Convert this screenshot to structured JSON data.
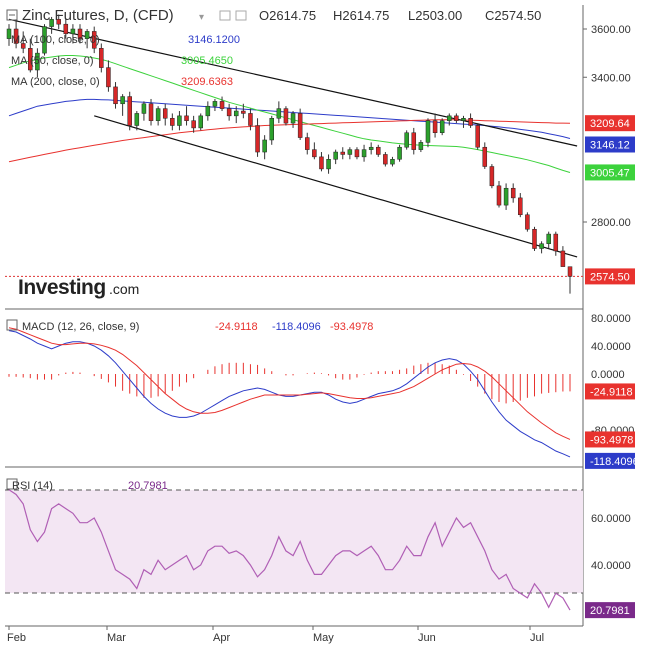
{
  "header": {
    "title": "Zinc Futures, D, (CFD)",
    "open": "O2614.75",
    "high": "H2614.75",
    "low": "L2503.00",
    "close": "C2574.50"
  },
  "indicators": {
    "ma100": {
      "label": "MA (100, close, 0)",
      "value": "3146.1200",
      "color": "#2d3cc9"
    },
    "ma50": {
      "label": "MA (50, close, 0)",
      "value": "3005.4650",
      "color": "#3cd23c"
    },
    "ma200": {
      "label": "MA (200, close, 0)",
      "value": "3209.6363",
      "color": "#e8322e"
    }
  },
  "logo": {
    "text": "Investing",
    "suffix": ".com"
  },
  "price_badges": {
    "ma200": "3209.64",
    "ma100": "3146.12",
    "ma50": "3005.47",
    "last": "2574.50"
  },
  "macd_panel": {
    "label": "MACD (12, 26, close, 9)",
    "v1": "-24.9118",
    "v2": "-118.4096",
    "v3": "-93.4978",
    "badge_hist": "-24.9118",
    "badge_signal": "-93.4978",
    "badge_macd": "-118.4096"
  },
  "rsi_panel": {
    "label": "RSI (14)",
    "value": "20.7981",
    "badge": "20.7981"
  },
  "axes": {
    "price_ticks": [
      "3600.00",
      "3400.00",
      "2800.00"
    ],
    "macd_ticks": [
      "80.0000",
      "40.0000",
      "0.0000",
      "-80.0000"
    ],
    "rsi_ticks": [
      "60.0000",
      "40.0000"
    ],
    "months": [
      "Feb",
      "Mar",
      "Apr",
      "May",
      "Jun",
      "Jul"
    ]
  },
  "chart_data": [
    {
      "type": "candlestick",
      "title": "Zinc Futures, D, (CFD)",
      "ylim": [
        2500,
        3700
      ],
      "x_labels": [
        "Feb",
        "Mar",
        "Apr",
        "May",
        "Jun",
        "Jul"
      ],
      "candles": [
        [
          3560,
          3620,
          3530,
          3600
        ],
        [
          3600,
          3640,
          3520,
          3540
        ],
        [
          3540,
          3590,
          3500,
          3520
        ],
        [
          3520,
          3560,
          3420,
          3430
        ],
        [
          3430,
          3520,
          3400,
          3500
        ],
        [
          3500,
          3620,
          3490,
          3610
        ],
        [
          3610,
          3650,
          3580,
          3640
        ],
        [
          3640,
          3660,
          3600,
          3620
        ],
        [
          3620,
          3640,
          3560,
          3580
        ],
        [
          3580,
          3620,
          3540,
          3600
        ],
        [
          3600,
          3620,
          3540,
          3560
        ],
        [
          3560,
          3600,
          3520,
          3590
        ],
        [
          3590,
          3610,
          3500,
          3520
        ],
        [
          3520,
          3540,
          3420,
          3440
        ],
        [
          3440,
          3470,
          3340,
          3360
        ],
        [
          3360,
          3380,
          3270,
          3290
        ],
        [
          3290,
          3330,
          3240,
          3320
        ],
        [
          3320,
          3340,
          3180,
          3200
        ],
        [
          3200,
          3260,
          3180,
          3250
        ],
        [
          3250,
          3300,
          3220,
          3290
        ],
        [
          3290,
          3310,
          3200,
          3220
        ],
        [
          3220,
          3280,
          3200,
          3270
        ],
        [
          3270,
          3290,
          3200,
          3230
        ],
        [
          3230,
          3250,
          3180,
          3200
        ],
        [
          3200,
          3260,
          3180,
          3240
        ],
        [
          3240,
          3280,
          3200,
          3220
        ],
        [
          3220,
          3240,
          3170,
          3190
        ],
        [
          3190,
          3250,
          3180,
          3240
        ],
        [
          3240,
          3300,
          3220,
          3280
        ],
        [
          3280,
          3310,
          3260,
          3300
        ],
        [
          3300,
          3320,
          3260,
          3270
        ],
        [
          3270,
          3290,
          3220,
          3240
        ],
        [
          3240,
          3280,
          3210,
          3260
        ],
        [
          3260,
          3290,
          3230,
          3250
        ],
        [
          3250,
          3270,
          3180,
          3200
        ],
        [
          3200,
          3230,
          3070,
          3090
        ],
        [
          3090,
          3160,
          3060,
          3140
        ],
        [
          3140,
          3240,
          3120,
          3230
        ],
        [
          3230,
          3300,
          3210,
          3270
        ],
        [
          3270,
          3280,
          3200,
          3210
        ],
        [
          3210,
          3260,
          3190,
          3250
        ],
        [
          3250,
          3270,
          3140,
          3150
        ],
        [
          3150,
          3170,
          3080,
          3100
        ],
        [
          3100,
          3130,
          3060,
          3070
        ],
        [
          3070,
          3090,
          3010,
          3020
        ],
        [
          3020,
          3080,
          3000,
          3060
        ],
        [
          3060,
          3100,
          3040,
          3090
        ],
        [
          3090,
          3110,
          3060,
          3080
        ],
        [
          3080,
          3110,
          3060,
          3100
        ],
        [
          3100,
          3110,
          3060,
          3070
        ],
        [
          3070,
          3120,
          3050,
          3100
        ],
        [
          3100,
          3130,
          3080,
          3110
        ],
        [
          3110,
          3120,
          3070,
          3080
        ],
        [
          3080,
          3090,
          3030,
          3040
        ],
        [
          3040,
          3070,
          3030,
          3060
        ],
        [
          3060,
          3120,
          3050,
          3110
        ],
        [
          3110,
          3180,
          3100,
          3170
        ],
        [
          3170,
          3190,
          3080,
          3100
        ],
        [
          3100,
          3140,
          3090,
          3130
        ],
        [
          3130,
          3230,
          3110,
          3220
        ],
        [
          3220,
          3250,
          3150,
          3170
        ],
        [
          3170,
          3230,
          3160,
          3220
        ],
        [
          3220,
          3250,
          3200,
          3240
        ],
        [
          3240,
          3250,
          3210,
          3220
        ],
        [
          3220,
          3240,
          3190,
          3230
        ],
        [
          3230,
          3250,
          3190,
          3200
        ],
        [
          3200,
          3210,
          3100,
          3110
        ],
        [
          3110,
          3130,
          3020,
          3030
        ],
        [
          3030,
          3040,
          2940,
          2950
        ],
        [
          2950,
          2970,
          2860,
          2870
        ],
        [
          2870,
          2960,
          2850,
          2940
        ],
        [
          2940,
          2960,
          2880,
          2900
        ],
        [
          2900,
          2920,
          2820,
          2830
        ],
        [
          2830,
          2840,
          2760,
          2770
        ],
        [
          2770,
          2780,
          2680,
          2690
        ],
        [
          2690,
          2720,
          2670,
          2710
        ],
        [
          2710,
          2760,
          2690,
          2750
        ],
        [
          2750,
          2760,
          2660,
          2680
        ],
        [
          2680,
          2700,
          2620,
          2615
        ],
        [
          2614.75,
          2614.75,
          2503,
          2574.5
        ]
      ],
      "series": [
        {
          "name": "MA (100, close, 0)",
          "values": [
            3240,
            3250,
            3260,
            3270,
            3280,
            3285,
            3290,
            3295,
            3300,
            3303,
            3306,
            3308,
            3308,
            3307,
            3306,
            3304,
            3302,
            3300,
            3298,
            3296,
            3294,
            3292,
            3290,
            3288,
            3286,
            3284,
            3282,
            3280,
            3278,
            3276,
            3274,
            3272,
            3270,
            3268,
            3266,
            3264,
            3262,
            3260,
            3258,
            3256,
            3254,
            3252,
            3250,
            3248,
            3246,
            3244,
            3242,
            3240,
            3238,
            3236,
            3234,
            3232,
            3230,
            3228,
            3226,
            3224,
            3222,
            3220,
            3218,
            3216,
            3214,
            3212,
            3210,
            3208,
            3206,
            3204,
            3202,
            3200,
            3197,
            3194,
            3191,
            3188,
            3184,
            3180,
            3176,
            3172,
            3166,
            3160,
            3154,
            3146
          ]
        },
        {
          "name": "MA (50, close, 0)",
          "values": [
            3440,
            3450,
            3460,
            3468,
            3474,
            3480,
            3484,
            3488,
            3490,
            3490,
            3488,
            3485,
            3480,
            3474,
            3466,
            3456,
            3446,
            3436,
            3426,
            3416,
            3406,
            3396,
            3386,
            3376,
            3366,
            3356,
            3346,
            3336,
            3326,
            3316,
            3306,
            3296,
            3288,
            3280,
            3272,
            3264,
            3256,
            3248,
            3240,
            3232,
            3224,
            3216,
            3208,
            3200,
            3192,
            3184,
            3176,
            3168,
            3160,
            3152,
            3145,
            3140,
            3136,
            3132,
            3128,
            3125,
            3122,
            3120,
            3118,
            3117,
            3116,
            3115,
            3114,
            3113,
            3110,
            3105,
            3100,
            3094,
            3088,
            3082,
            3076,
            3070,
            3064,
            3058,
            3050,
            3042,
            3034,
            3024,
            3014,
            3005
          ]
        },
        {
          "name": "MA (200, close, 0)",
          "values": [
            3050,
            3056,
            3062,
            3068,
            3074,
            3080,
            3086,
            3092,
            3098,
            3103,
            3108,
            3113,
            3118,
            3123,
            3128,
            3133,
            3138,
            3142,
            3146,
            3150,
            3154,
            3158,
            3162,
            3166,
            3170,
            3173,
            3176,
            3179,
            3182,
            3185,
            3188,
            3190,
            3192,
            3194,
            3196,
            3198,
            3200,
            3201,
            3202,
            3203,
            3204,
            3205,
            3206,
            3207,
            3208,
            3209,
            3210,
            3211,
            3212,
            3213,
            3214,
            3215,
            3216,
            3217,
            3218,
            3219,
            3220,
            3221,
            3222,
            3223,
            3224,
            3224,
            3224,
            3224,
            3223,
            3222,
            3221,
            3220,
            3219,
            3218,
            3217,
            3216,
            3215,
            3214,
            3213,
            3212,
            3211,
            3210,
            3210,
            3209.64
          ]
        }
      ],
      "channel": {
        "upper": [
          [
            0,
            3640
          ],
          [
            80,
            3115
          ]
        ],
        "lower": [
          [
            12,
            3240
          ],
          [
            80,
            2655
          ]
        ]
      }
    },
    {
      "type": "macd",
      "title": "MACD (12, 26, close, 9)",
      "ylim": [
        -140,
        100
      ],
      "macd": [
        62,
        60,
        55,
        50,
        44,
        40,
        36,
        40,
        44,
        46,
        46,
        44,
        40,
        34,
        26,
        16,
        4,
        -8,
        -20,
        -32,
        -42,
        -50,
        -56,
        -60,
        -62,
        -62,
        -60,
        -56,
        -50,
        -44,
        -38,
        -32,
        -28,
        -24,
        -22,
        -20,
        -22,
        -26,
        -30,
        -32,
        -32,
        -30,
        -28,
        -26,
        -26,
        -30,
        -36,
        -40,
        -42,
        -40,
        -36,
        -32,
        -28,
        -26,
        -24,
        -20,
        -14,
        -6,
        2,
        10,
        16,
        20,
        22,
        20,
        14,
        4,
        -8,
        -24,
        -40,
        -54,
        -66,
        -74,
        -82,
        -88,
        -94,
        -98,
        -104,
        -110,
        -114,
        -118.41
      ],
      "signal": [
        66,
        64,
        60,
        56,
        52,
        48,
        44,
        42,
        42,
        43,
        44,
        44,
        43,
        41,
        38,
        34,
        28,
        20,
        12,
        2,
        -8,
        -18,
        -28,
        -36,
        -44,
        -50,
        -54,
        -56,
        -56,
        -55,
        -52,
        -48,
        -44,
        -40,
        -36,
        -33,
        -30,
        -30,
        -30,
        -30,
        -30,
        -30,
        -29,
        -28,
        -27,
        -28,
        -30,
        -32,
        -34,
        -35,
        -35,
        -34,
        -32,
        -30,
        -28,
        -26,
        -22,
        -18,
        -12,
        -6,
        0,
        6,
        10,
        14,
        15,
        14,
        10,
        4,
        -4,
        -14,
        -24,
        -34,
        -44,
        -54,
        -62,
        -70,
        -77,
        -84,
        -89,
        -93.5
      ],
      "histogram": [
        -4,
        -4,
        -5,
        -6,
        -8,
        -8,
        -8,
        -2,
        2,
        3,
        2,
        0,
        -3,
        -7,
        -12,
        -18,
        -24,
        -28,
        -32,
        -34,
        -34,
        -32,
        -28,
        -24,
        -18,
        -12,
        -6,
        0,
        6,
        11,
        14,
        16,
        16,
        16,
        14,
        13,
        8,
        4,
        0,
        -2,
        -2,
        0,
        1,
        2,
        1,
        -2,
        -6,
        -8,
        -8,
        -5,
        -1,
        2,
        4,
        4,
        4,
        6,
        8,
        12,
        14,
        16,
        16,
        14,
        12,
        6,
        -1,
        -10,
        -18,
        -28,
        -36,
        -40,
        -42,
        -40,
        -38,
        -34,
        -32,
        -28,
        -27,
        -26,
        -25,
        -24.91
      ]
    },
    {
      "type": "line",
      "title": "RSI (14)",
      "ylim": [
        15,
        75
      ],
      "values": [
        72,
        70,
        66,
        55,
        50,
        54,
        64,
        66,
        64,
        62,
        58,
        58,
        60,
        54,
        46,
        38,
        36,
        34,
        30,
        38,
        36,
        42,
        38,
        40,
        42,
        44,
        38,
        40,
        46,
        48,
        48,
        45,
        46,
        44,
        40,
        35,
        38,
        44,
        52,
        46,
        44,
        50,
        42,
        36,
        36,
        40,
        44,
        46,
        46,
        44,
        46,
        48,
        44,
        38,
        38,
        42,
        48,
        44,
        44,
        52,
        58,
        48,
        54,
        60,
        56,
        58,
        52,
        46,
        38,
        34,
        36,
        30,
        28,
        26,
        32,
        28,
        22,
        28,
        26,
        20.8
      ],
      "overbought": 70,
      "oversold": 30
    }
  ]
}
